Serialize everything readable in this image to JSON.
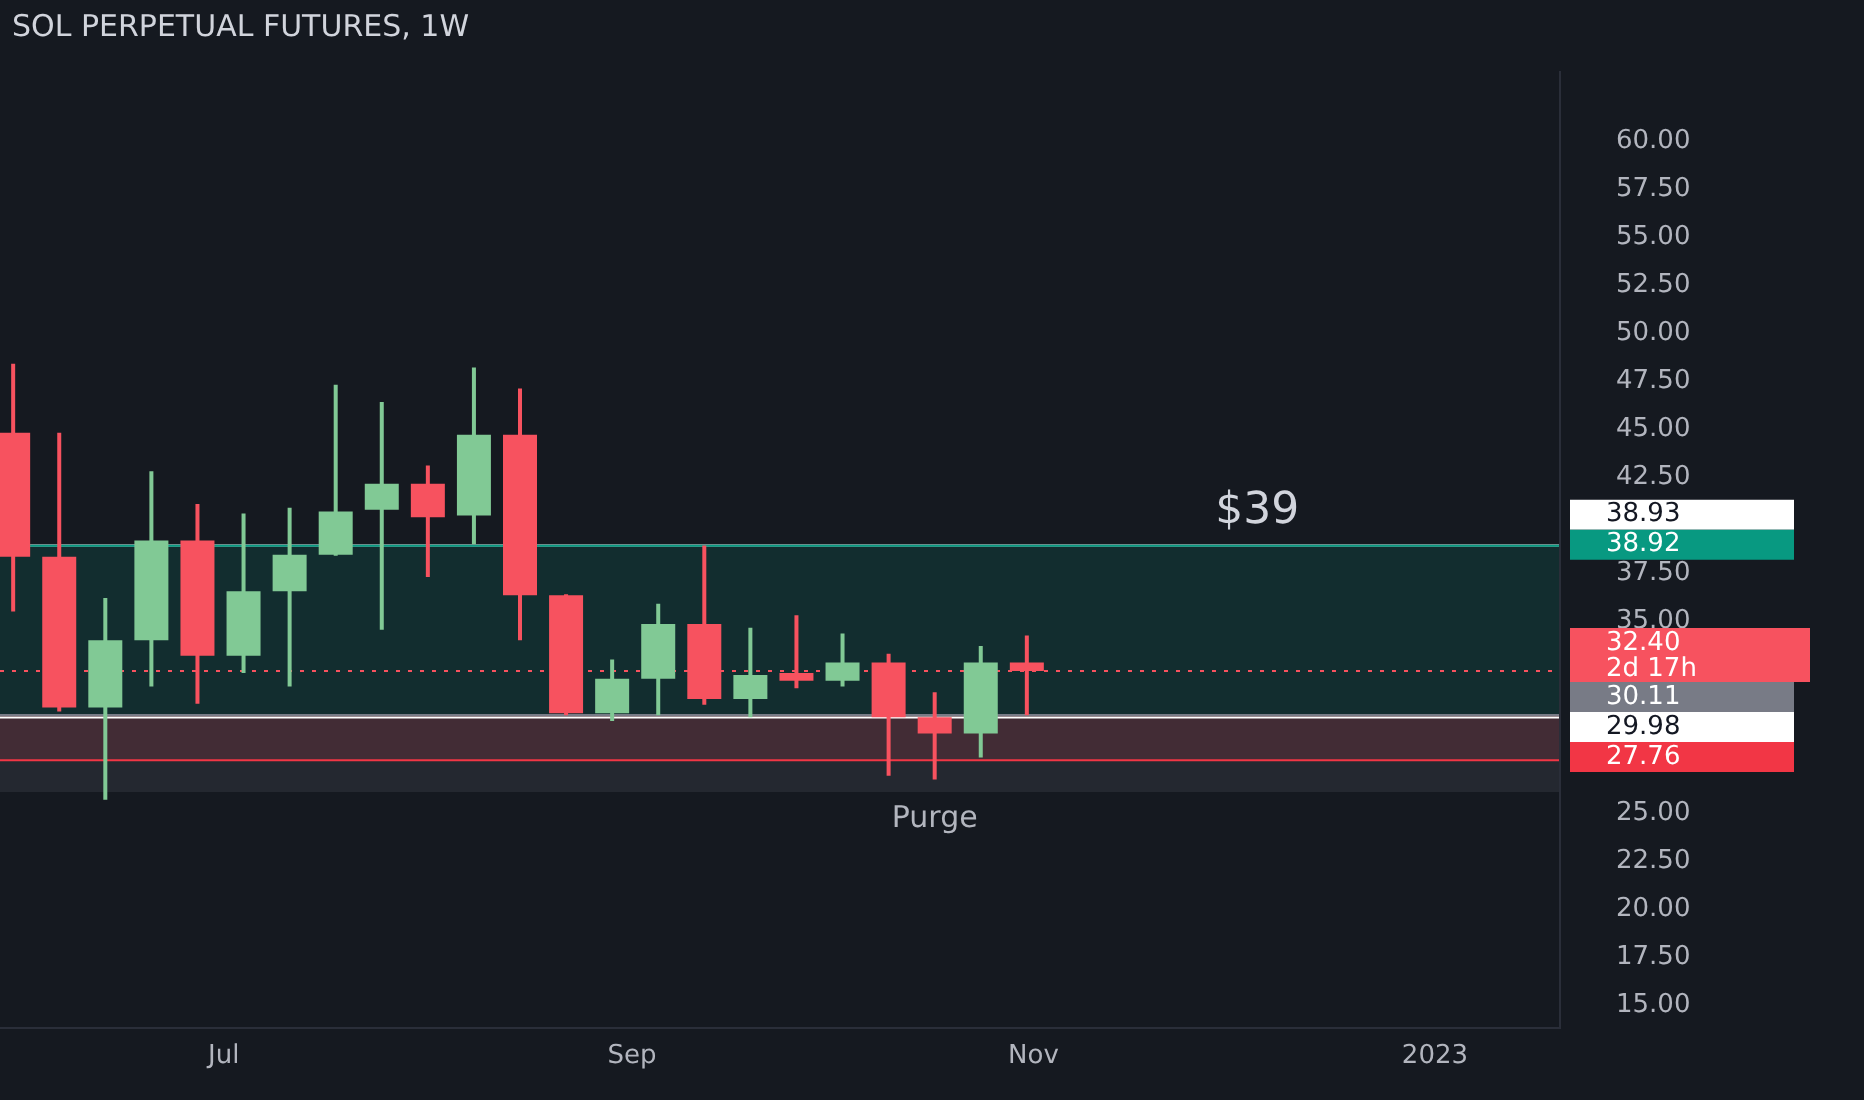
{
  "chart_data": {
    "type": "candlestick",
    "title": "SOL PERPETUAL FUTURES, 1W",
    "x": [
      "2022-05-30",
      "2022-06-06",
      "2022-06-13",
      "2022-06-20",
      "2022-06-27",
      "2022-07-04",
      "2022-07-11",
      "2022-07-18",
      "2022-07-25",
      "2022-08-01",
      "2022-08-08",
      "2022-08-15",
      "2022-08-22",
      "2022-08-29",
      "2022-09-05",
      "2022-09-12",
      "2022-09-19",
      "2022-09-26",
      "2022-10-03",
      "2022-10-10",
      "2022-10-17",
      "2022-10-24",
      "2022-10-31"
    ],
    "ohlc": [
      [
        44.8,
        48.4,
        35.5,
        38.35
      ],
      [
        38.35,
        44.8,
        30.3,
        30.5
      ],
      [
        30.5,
        36.2,
        25.7,
        34.0
      ],
      [
        34.0,
        42.8,
        31.6,
        39.2
      ],
      [
        39.2,
        41.1,
        30.7,
        33.2
      ],
      [
        33.2,
        40.6,
        32.3,
        36.55
      ],
      [
        36.55,
        40.9,
        31.6,
        38.45
      ],
      [
        38.45,
        47.3,
        38.4,
        40.7
      ],
      [
        40.8,
        46.4,
        34.55,
        42.15
      ],
      [
        42.15,
        43.1,
        37.3,
        40.4
      ],
      [
        40.5,
        48.2,
        39.0,
        44.7
      ],
      [
        44.7,
        47.1,
        34.0,
        36.35
      ],
      [
        36.35,
        36.4,
        30.1,
        30.2
      ],
      [
        30.2,
        33.0,
        29.8,
        32.0
      ],
      [
        32.0,
        35.9,
        30.1,
        34.85
      ],
      [
        34.85,
        38.93,
        30.65,
        30.95
      ],
      [
        30.95,
        34.65,
        30.0,
        32.2
      ],
      [
        32.3,
        35.3,
        31.5,
        31.9
      ],
      [
        31.9,
        34.35,
        31.6,
        32.85
      ],
      [
        32.85,
        33.3,
        26.95,
        30.0
      ],
      [
        30.0,
        31.3,
        26.75,
        29.15
      ],
      [
        29.15,
        33.7,
        27.9,
        32.85
      ],
      [
        32.85,
        34.25,
        30.1,
        32.4
      ]
    ],
    "colors": [
      "#f7525f",
      "#f7525f",
      "#81c995",
      "#81c995",
      "#f7525f",
      "#81c995",
      "#81c995",
      "#81c995",
      "#81c995",
      "#f7525f",
      "#81c995",
      "#f7525f",
      "#f7525f",
      "#81c995",
      "#81c995",
      "#f7525f",
      "#81c995",
      "#f7525f",
      "#81c995",
      "#f7525f",
      "#f7525f",
      "#81c995",
      "#f7525f"
    ],
    "xlim": [
      "2022-05-28",
      "2023-01-20"
    ],
    "xticks": [
      {
        "value": "2022-07-01",
        "label": "Jul"
      },
      {
        "value": "2022-09-01",
        "label": "Sep"
      },
      {
        "value": "2022-11-01",
        "label": "Nov"
      },
      {
        "value": "2023-01-01",
        "label": "2023"
      }
    ],
    "ylim": [
      13.8,
      63.6
    ],
    "yticks": [
      {
        "value": 15,
        "label": "15.00"
      },
      {
        "value": 17.5,
        "label": "17.50"
      },
      {
        "value": 20,
        "label": "20.00"
      },
      {
        "value": 22.5,
        "label": "22.50"
      },
      {
        "value": 25,
        "label": "25.00"
      },
      {
        "value": 35,
        "label": "35.00"
      },
      {
        "value": 37.5,
        "label": "37.50"
      },
      {
        "value": 42.5,
        "label": "42.50"
      },
      {
        "value": 45,
        "label": "45.00"
      },
      {
        "value": 47.5,
        "label": "47.50"
      },
      {
        "value": 50,
        "label": "50.00"
      },
      {
        "value": 52.5,
        "label": "52.50"
      },
      {
        "value": 55,
        "label": "55.00"
      },
      {
        "value": 57.5,
        "label": "57.50"
      },
      {
        "value": 60,
        "label": "60.00"
      }
    ],
    "ref_lines": [
      {
        "axis": "y",
        "value": 38.93,
        "label": "38.93",
        "color": "#ffffff"
      },
      {
        "axis": "y",
        "value": 38.92,
        "label": "38.92",
        "color": "#089981"
      },
      {
        "axis": "y",
        "value": 32.4,
        "label": "32.40 2d 17h",
        "color": "#f7525f",
        "line_style": "dotted"
      },
      {
        "axis": "y",
        "value": 30.11,
        "label": "30.11",
        "color": "#787b86"
      },
      {
        "axis": "y",
        "value": 29.98,
        "label": "29.98",
        "color": "#ffffff"
      },
      {
        "axis": "y",
        "value": 27.76,
        "label": "27.76",
        "color": "#f23645"
      }
    ],
    "bands": [
      {
        "axis": "y",
        "from": 30.11,
        "to": 38.92,
        "color": "#089981"
      },
      {
        "axis": "y",
        "from": 27.76,
        "to": 30.11,
        "color": "#f23645"
      },
      {
        "axis": "y",
        "from": 26.1,
        "to": 30.0,
        "label": "Purge",
        "color": "#787b86"
      }
    ],
    "annotations": [
      {
        "text": "$39",
        "x": "2022-12-05",
        "y": 38.93
      }
    ],
    "grid": false
  }
}
